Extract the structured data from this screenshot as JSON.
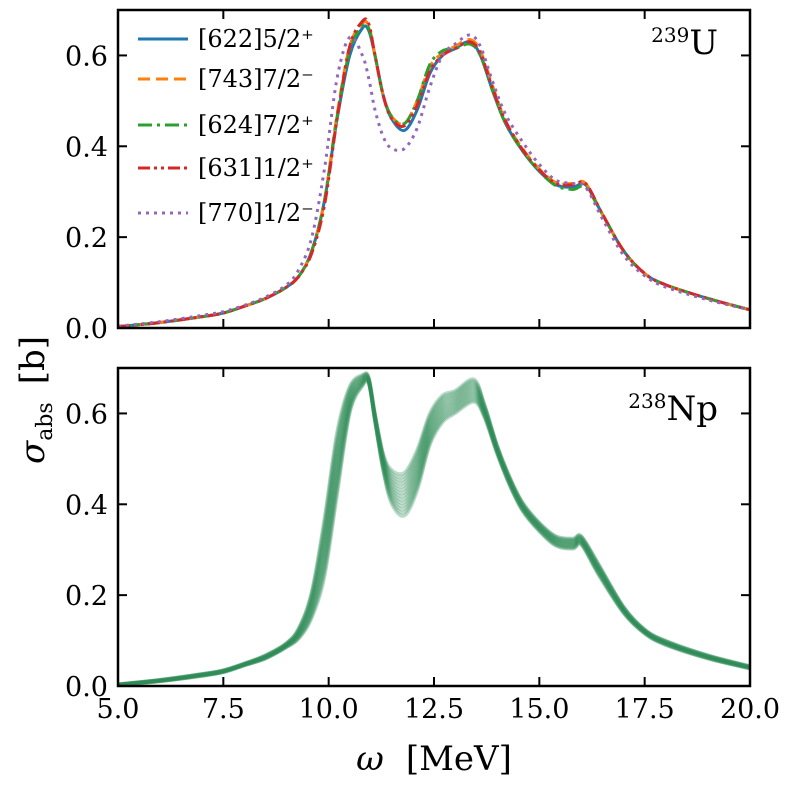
{
  "chart_data": [
    {
      "type": "line",
      "panel": "top",
      "annotation": {
        "mass": "239",
        "element": "U"
      },
      "xlim": [
        5.0,
        20.0
      ],
      "ylim": [
        0.0,
        0.7
      ],
      "yticks": [
        "0.0",
        "0.2",
        "0.4",
        "0.6"
      ],
      "xticks": [
        "5.0",
        "7.5",
        "10.0",
        "12.5",
        "15.0",
        "17.5",
        "20.0"
      ],
      "grid": false,
      "legend_position": "top-left",
      "series": [
        {
          "name": "[622]5/2⁺",
          "color": "#1f77b4",
          "dash": "solid",
          "x": [
            5.0,
            6.0,
            7.0,
            7.5,
            8.0,
            8.5,
            9.0,
            9.3,
            9.6,
            9.9,
            10.2,
            10.5,
            10.8,
            10.95,
            11.1,
            11.3,
            11.5,
            11.8,
            12.1,
            12.4,
            12.7,
            13.0,
            13.35,
            13.6,
            13.9,
            14.2,
            14.6,
            15.0,
            15.4,
            15.8,
            16.1,
            16.5,
            17.0,
            17.5,
            18.0,
            19.0,
            20.0
          ],
          "y": [
            0.003,
            0.012,
            0.025,
            0.033,
            0.048,
            0.065,
            0.09,
            0.115,
            0.17,
            0.28,
            0.46,
            0.6,
            0.66,
            0.655,
            0.6,
            0.51,
            0.46,
            0.435,
            0.48,
            0.56,
            0.6,
            0.615,
            0.63,
            0.6,
            0.52,
            0.45,
            0.39,
            0.345,
            0.315,
            0.31,
            0.315,
            0.25,
            0.17,
            0.12,
            0.095,
            0.065,
            0.04
          ]
        },
        {
          "name": "[743]7/2⁻",
          "color": "#ff7f0e",
          "dash": "dashed",
          "x": [
            5.0,
            6.0,
            7.0,
            7.5,
            8.0,
            8.5,
            9.0,
            9.3,
            9.6,
            9.9,
            10.2,
            10.5,
            10.8,
            10.95,
            11.1,
            11.3,
            11.5,
            11.8,
            12.1,
            12.4,
            12.7,
            13.0,
            13.35,
            13.6,
            13.9,
            14.2,
            14.6,
            15.0,
            15.4,
            15.8,
            16.1,
            16.5,
            17.0,
            17.5,
            18.0,
            19.0,
            20.0
          ],
          "y": [
            0.003,
            0.012,
            0.025,
            0.033,
            0.048,
            0.065,
            0.09,
            0.115,
            0.17,
            0.28,
            0.47,
            0.62,
            0.67,
            0.665,
            0.6,
            0.51,
            0.465,
            0.45,
            0.5,
            0.575,
            0.605,
            0.62,
            0.635,
            0.61,
            0.53,
            0.455,
            0.395,
            0.35,
            0.32,
            0.318,
            0.318,
            0.25,
            0.17,
            0.12,
            0.095,
            0.065,
            0.04
          ]
        },
        {
          "name": "[624]7/2⁺",
          "color": "#2ca02c",
          "dash": "dashdot",
          "x": [
            5.0,
            6.0,
            7.0,
            7.5,
            8.0,
            8.5,
            9.0,
            9.3,
            9.6,
            9.9,
            10.2,
            10.5,
            10.8,
            10.95,
            11.1,
            11.3,
            11.5,
            11.8,
            12.1,
            12.4,
            12.7,
            13.0,
            13.35,
            13.6,
            13.9,
            14.2,
            14.6,
            15.0,
            15.4,
            15.8,
            16.1,
            16.5,
            17.0,
            17.5,
            18.0,
            19.0,
            20.0
          ],
          "y": [
            0.003,
            0.012,
            0.025,
            0.033,
            0.048,
            0.065,
            0.09,
            0.115,
            0.17,
            0.28,
            0.465,
            0.61,
            0.665,
            0.66,
            0.6,
            0.51,
            0.465,
            0.45,
            0.5,
            0.58,
            0.61,
            0.615,
            0.625,
            0.6,
            0.52,
            0.45,
            0.39,
            0.345,
            0.313,
            0.305,
            0.31,
            0.25,
            0.17,
            0.12,
            0.095,
            0.065,
            0.04
          ]
        },
        {
          "name": "[631]1/2⁺",
          "color": "#d62728",
          "dash": "dashdotdot",
          "x": [
            5.0,
            6.0,
            7.0,
            7.5,
            8.0,
            8.5,
            9.0,
            9.3,
            9.6,
            9.9,
            10.2,
            10.5,
            10.8,
            10.95,
            11.1,
            11.3,
            11.5,
            11.8,
            12.1,
            12.4,
            12.7,
            13.0,
            13.35,
            13.6,
            13.9,
            14.2,
            14.6,
            15.0,
            15.4,
            15.8,
            16.1,
            16.5,
            17.0,
            17.5,
            18.0,
            19.0,
            20.0
          ],
          "y": [
            0.003,
            0.012,
            0.025,
            0.033,
            0.048,
            0.065,
            0.09,
            0.115,
            0.165,
            0.27,
            0.46,
            0.62,
            0.675,
            0.67,
            0.6,
            0.51,
            0.46,
            0.445,
            0.49,
            0.565,
            0.6,
            0.615,
            0.63,
            0.605,
            0.525,
            0.455,
            0.393,
            0.348,
            0.318,
            0.315,
            0.318,
            0.25,
            0.17,
            0.12,
            0.095,
            0.065,
            0.04
          ]
        },
        {
          "name": "[770]1/2⁻",
          "color": "#9467bd",
          "dash": "dotted",
          "x": [
            5.0,
            6.0,
            7.0,
            7.5,
            8.0,
            8.5,
            9.0,
            9.3,
            9.6,
            9.9,
            10.2,
            10.5,
            10.8,
            10.95,
            11.1,
            11.3,
            11.5,
            11.8,
            12.1,
            12.4,
            12.7,
            13.0,
            13.35,
            13.6,
            13.9,
            14.2,
            14.6,
            15.0,
            15.4,
            15.8,
            16.1,
            16.5,
            17.0,
            17.5,
            18.0,
            19.0,
            20.0
          ],
          "y": [
            0.004,
            0.014,
            0.028,
            0.036,
            0.05,
            0.068,
            0.095,
            0.13,
            0.2,
            0.35,
            0.55,
            0.64,
            0.6,
            0.55,
            0.48,
            0.42,
            0.395,
            0.395,
            0.44,
            0.53,
            0.6,
            0.625,
            0.645,
            0.62,
            0.54,
            0.47,
            0.41,
            0.36,
            0.325,
            0.318,
            0.31,
            0.24,
            0.16,
            0.115,
            0.09,
            0.062,
            0.04
          ]
        }
      ]
    },
    {
      "type": "line",
      "panel": "bottom",
      "annotation": {
        "mass": "238",
        "element": "Np"
      },
      "xlim": [
        5.0,
        20.0
      ],
      "ylim": [
        0.0,
        0.7
      ],
      "yticks": [
        "0.0",
        "0.2",
        "0.4",
        "0.6"
      ],
      "xticks": [
        "5.0",
        "7.5",
        "10.0",
        "12.5",
        "15.0",
        "17.5",
        "20.0"
      ],
      "xlabel": {
        "symbol": "ω",
        "unit": "[MeV]"
      },
      "grid": false,
      "band_color": "#2e8b57",
      "x": [
        5.0,
        6.0,
        7.0,
        7.5,
        8.0,
        8.5,
        9.0,
        9.3,
        9.6,
        9.9,
        10.2,
        10.5,
        10.8,
        10.95,
        11.1,
        11.3,
        11.5,
        11.8,
        12.1,
        12.4,
        12.7,
        13.0,
        13.45,
        13.7,
        14.0,
        14.3,
        14.6,
        15.0,
        15.4,
        15.8,
        16.0,
        16.4,
        17.0,
        17.5,
        18.0,
        19.0,
        20.0
      ],
      "y_upper": [
        0.004,
        0.014,
        0.027,
        0.035,
        0.05,
        0.068,
        0.095,
        0.13,
        0.21,
        0.37,
        0.56,
        0.66,
        0.685,
        0.68,
        0.6,
        0.51,
        0.475,
        0.47,
        0.52,
        0.6,
        0.64,
        0.65,
        0.675,
        0.62,
        0.53,
        0.46,
        0.405,
        0.36,
        0.33,
        0.325,
        0.33,
        0.27,
        0.175,
        0.125,
        0.1,
        0.068,
        0.044
      ],
      "y_lower": [
        0.002,
        0.01,
        0.022,
        0.03,
        0.045,
        0.06,
        0.085,
        0.105,
        0.15,
        0.24,
        0.42,
        0.6,
        0.66,
        0.665,
        0.58,
        0.47,
        0.4,
        0.375,
        0.43,
        0.53,
        0.58,
        0.6,
        0.625,
        0.59,
        0.51,
        0.44,
        0.385,
        0.34,
        0.308,
        0.302,
        0.31,
        0.245,
        0.16,
        0.115,
        0.09,
        0.06,
        0.038
      ]
    }
  ],
  "shared": {
    "ylabel": {
      "symbol": "σ",
      "subscript": "abs",
      "unit": "[b]"
    }
  }
}
